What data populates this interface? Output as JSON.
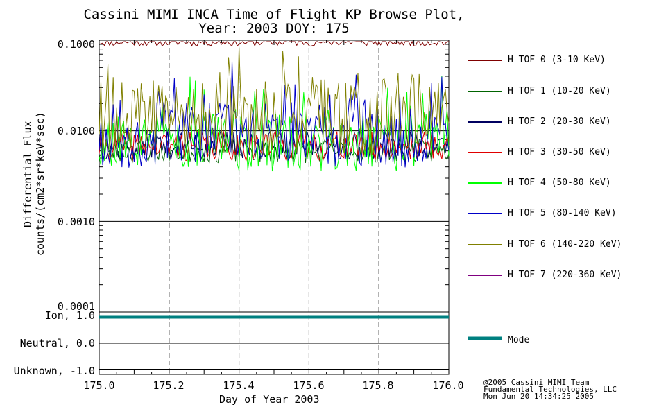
{
  "chart_data": {
    "type": "line",
    "title": "Cassini MIMI INCA Time of Flight KP Browse Plot,",
    "subtitle": "Year: 2003 DOY: 175",
    "xlabel": "Day of Year 2003",
    "ylabel_line1": "Differential Flux",
    "ylabel_line2": "counts/(cm2*sr*keV*sec)",
    "xlim": [
      175.0,
      176.0
    ],
    "ylim": [
      0.0001,
      0.1
    ],
    "yscale": "log",
    "x_ticks": [
      "175.0",
      "175.2",
      "175.4",
      "175.6",
      "175.8",
      "176.0"
    ],
    "y_ticks": [
      "0.1000",
      "0.0100",
      "0.0010",
      "0.0001"
    ],
    "series": [
      {
        "name": "H TOF 0 (3-10 KeV)",
        "color": "#800000",
        "base": 0.096,
        "spread": 0.08,
        "seed": 11
      },
      {
        "name": "H TOF 1 (10-20 KeV)",
        "color": "#006400",
        "base": 0.006,
        "spread": 0.22,
        "seed": 23
      },
      {
        "name": "H TOF 2 (20-30 KeV)",
        "color": "#000060",
        "base": 0.007,
        "spread": 0.28,
        "seed": 37
      },
      {
        "name": "H TOF 3 (30-50 KeV)",
        "color": "#e00000",
        "base": 0.0068,
        "spread": 0.28,
        "seed": 41
      },
      {
        "name": "H TOF 4 (50-80 KeV)",
        "color": "#00ff00",
        "base": 0.0075,
        "spread": 0.55,
        "seed": 53
      },
      {
        "name": "H TOF 5 (80-140 KeV)",
        "color": "#0000c8",
        "base": 0.009,
        "spread": 0.6,
        "seed": 67
      },
      {
        "name": "H TOF 6 (140-220 KeV)",
        "color": "#808000",
        "base": 0.015,
        "spread": 0.75,
        "seed": 79
      },
      {
        "name": "H TOF 7 (220-360 KeV)",
        "color": "#800080",
        "base": null,
        "spread": 0,
        "seed": 0
      }
    ],
    "mode_panel": {
      "y_ticks": [
        "Ion, 1.0",
        "Neutral, 0.0",
        "Unknown, -1.0"
      ],
      "ylim": [
        -1.2,
        1.2
      ],
      "series": {
        "name": "Mode",
        "color": "#008080",
        "value": 1.0
      }
    }
  },
  "credits": {
    "line1": "@2005 Cassini MIMI Team",
    "line2": "Fundamental Technologies, LLC",
    "line3": "Mon Jun 20 14:34:25 2005"
  }
}
